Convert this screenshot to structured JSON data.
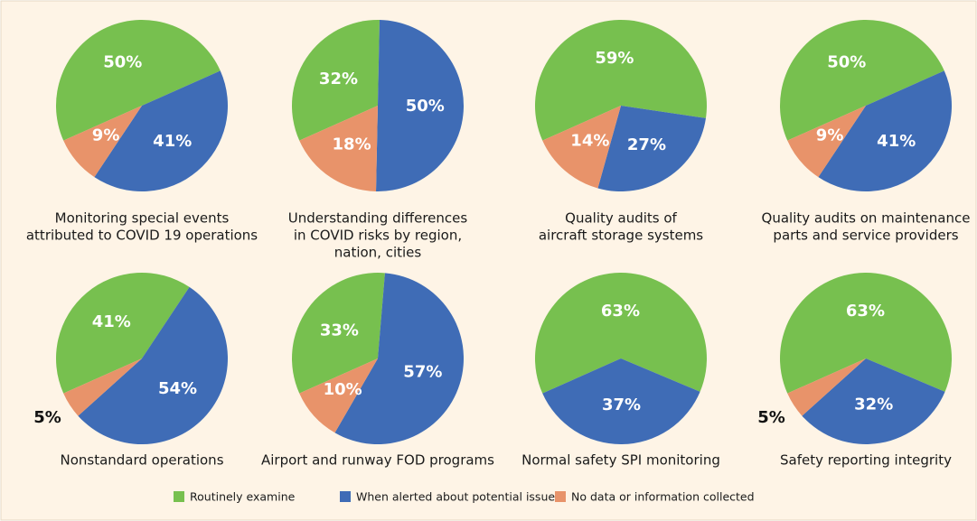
{
  "legend": {
    "labels": [
      "Routinely examine",
      "When alerted about potential issues",
      "No data or information collected"
    ],
    "colors": [
      "#77c04f",
      "#3f6cb6",
      "#e8936a"
    ]
  },
  "chart_data": [
    {
      "type": "pie",
      "title": [
        "Monitoring special events",
        "attributed to COVID 19 operations"
      ],
      "values": [
        50,
        41,
        9
      ]
    },
    {
      "type": "pie",
      "title": [
        "Understanding differences",
        "in COVID risks by region,",
        "nation, cities"
      ],
      "values": [
        32,
        50,
        18
      ]
    },
    {
      "type": "pie",
      "title": [
        "Quality audits of",
        "aircraft storage systems"
      ],
      "values": [
        59,
        27,
        14
      ]
    },
    {
      "type": "pie",
      "title": [
        "Quality audits on maintenance",
        "parts and service providers"
      ],
      "values": [
        50,
        41,
        9
      ]
    },
    {
      "type": "pie",
      "title": [
        "Nonstandard operations"
      ],
      "values": [
        41,
        54,
        5
      ]
    },
    {
      "type": "pie",
      "title": [
        "Airport and runway FOD programs"
      ],
      "values": [
        33,
        57,
        10
      ]
    },
    {
      "type": "pie",
      "title": [
        "Normal safety SPI monitoring"
      ],
      "values": [
        63,
        37
      ]
    },
    {
      "type": "pie",
      "title": [
        "Safety reporting integrity"
      ],
      "values": [
        63,
        32,
        5
      ]
    }
  ]
}
